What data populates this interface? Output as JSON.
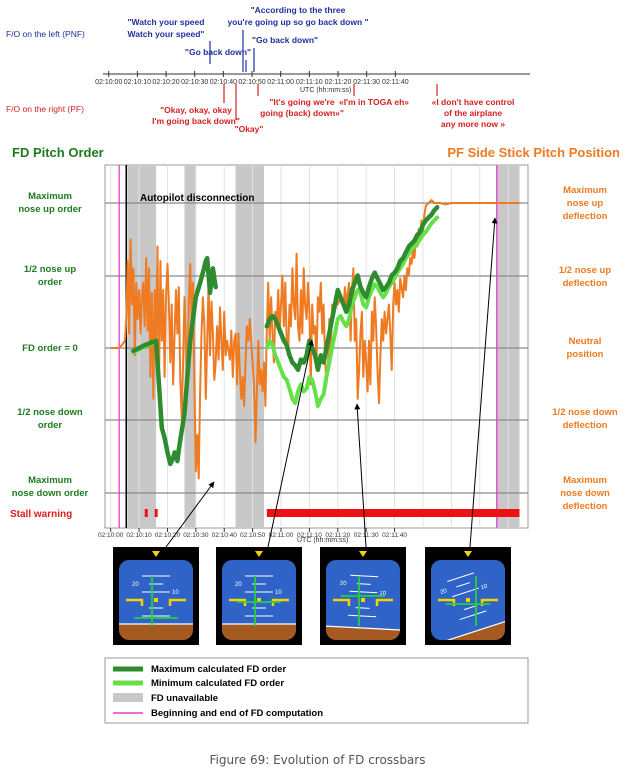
{
  "headings": {
    "pnf_axis": "F/O on the left (PNF)",
    "pf_axis": "F/O on the right (PF)",
    "fd_pitch_order": "FD Pitch Order",
    "side_stick": "PF Side Stick Pitch Position",
    "autopilot": "Autopilot disconnection",
    "stall_warning": "Stall warning",
    "utc_label": "UTC (hh:mm:ss)"
  },
  "time_ticks": [
    "02:10:00",
    "02:10:10",
    "02:10:20",
    "02:10:30",
    "02:10:40",
    "02:10:50",
    "02:11:00",
    "02:11:10",
    "02:11:20",
    "02:11:30",
    "02:11:40"
  ],
  "pnf_quotes": [
    {
      "l1": "\"Watch your speed",
      "l2": "Watch your speed\""
    },
    {
      "l1": "\"Go back down\"",
      "l2": ""
    },
    {
      "l1": "\"According to the three",
      "l2": "you're going up so go back down \""
    },
    {
      "l1": "\"Go back down\"",
      "l2": ""
    }
  ],
  "pf_quotes": [
    {
      "l1": "\"Okay, okay, okay",
      "l2": "I'm going back down\"",
      "l3": ""
    },
    {
      "l1": "\"Okay\"",
      "l2": "",
      "l3": ""
    },
    {
      "l1": "\"It's going we're",
      "l2": "going (back) down»\"",
      "l3": ""
    },
    {
      "l1": "«I'm in TOGA eh»",
      "l2": "",
      "l3": ""
    },
    {
      "l1": "«I don't have control",
      "l2": "of the airplane",
      "l3": "any more now »"
    }
  ],
  "left_labels": {
    "max_up": [
      "Maximum",
      "nose up order"
    ],
    "half_up": [
      "1/2 nose up",
      "order"
    ],
    "zero": [
      "FD order = 0"
    ],
    "half_down": [
      "1/2 nose down",
      "order"
    ],
    "max_down": [
      "Maximum",
      "nose down order"
    ]
  },
  "right_labels": {
    "max_up": [
      "Maximum",
      "nose up",
      "deflection"
    ],
    "half_up": [
      "1/2 nose up",
      "deflection"
    ],
    "zero": [
      "Neutral",
      "position"
    ],
    "half_down": [
      "1/2 nose down",
      "deflection"
    ],
    "max_down": [
      "Maximum",
      "nose down",
      "deflection"
    ]
  },
  "legend": [
    {
      "label": "Maximum calculated FD order",
      "color": "#2e8b2e"
    },
    {
      "label": "Minimum calculated FD order",
      "color": "#66e04a"
    },
    {
      "label": "FD unavailable",
      "color": "#c8c8c8"
    },
    {
      "label": "Beginning and end of FD computation",
      "color": "#e040d0"
    }
  ],
  "caption": "Figure 69: Evolution of FD crossbars",
  "pfd_labels": [
    "20",
    "10",
    "10",
    "10",
    "10"
  ],
  "chart_data": {
    "type": "line",
    "xlabel": "UTC (hh:mm:ss)",
    "x_unit": "seconds after 02:10:00",
    "ylim": [
      -1,
      1
    ],
    "y_meaning": "fraction of maximum (1 = maximum nose up, -1 = maximum nose down)",
    "fd_unavailable_intervals": [
      [
        6,
        16
      ],
      [
        26,
        30
      ],
      [
        44,
        54
      ],
      [
        136,
        144
      ]
    ],
    "fd_computation_markers": [
      3,
      136
    ],
    "autopilot_disconnection": 5.5,
    "stall_warning_intervals": [
      [
        12,
        13
      ],
      [
        15.5,
        16.5
      ],
      [
        55,
        144
      ]
    ],
    "colors": {
      "fd_max": "#2e8b2e",
      "fd_min": "#66e04a",
      "stick": "#ee7a22",
      "unavailable": "#c8c8c8",
      "marker": "#e040d0",
      "stall": "#ee1111"
    },
    "stick": [
      [
        0,
        0
      ],
      [
        1,
        0
      ],
      [
        2,
        0
      ],
      [
        3,
        0
      ],
      [
        4,
        0.02
      ],
      [
        5,
        0.05
      ],
      [
        5.5,
        0.2
      ],
      [
        6,
        0.6
      ],
      [
        6.5,
        0.1
      ],
      [
        7,
        0.75
      ],
      [
        7.5,
        0.3
      ],
      [
        8,
        0.55
      ],
      [
        8.5,
        -0.05
      ],
      [
        9,
        0.45
      ],
      [
        9.5,
        0.2
      ],
      [
        10,
        0.4
      ],
      [
        10.5,
        0.1
      ],
      [
        11,
        0.35
      ],
      [
        11.5,
        0.45
      ],
      [
        12,
        0.15
      ],
      [
        12.5,
        0.62
      ],
      [
        13,
        0.12
      ],
      [
        13.5,
        0.55
      ],
      [
        14,
        -0.2
      ],
      [
        14.5,
        0.38
      ],
      [
        15,
        -0.35
      ],
      [
        15.5,
        0.4
      ],
      [
        16,
        0.05
      ],
      [
        16.5,
        0.7
      ],
      [
        17,
        -0.3
      ],
      [
        17.5,
        0.6
      ],
      [
        18,
        0.05
      ],
      [
        18.5,
        0.4
      ],
      [
        19,
        -0.2
      ],
      [
        19.5,
        0.35
      ],
      [
        20,
        0.58
      ],
      [
        20.5,
        0.3
      ],
      [
        21,
        -0.1
      ],
      [
        21.5,
        0.3
      ],
      [
        22,
        -0.25
      ],
      [
        22.5,
        0.1
      ],
      [
        23,
        0.4
      ],
      [
        23.5,
        0.1
      ],
      [
        24,
        0.42
      ],
      [
        24.5,
        -0.2
      ],
      [
        25,
        -0.48
      ],
      [
        25.5,
        -0.1
      ],
      [
        26,
        0.35
      ],
      [
        26.5,
        0.05
      ],
      [
        27,
        -0.3
      ],
      [
        27.5,
        0.3
      ],
      [
        28,
        0.58
      ],
      [
        28.5,
        0.2
      ],
      [
        29,
        0.45
      ],
      [
        29.5,
        -0.25
      ],
      [
        30,
        -0.85
      ],
      [
        30.5,
        -0.6
      ],
      [
        31,
        -0.9
      ],
      [
        31.5,
        -0.3
      ],
      [
        32,
        0.1
      ],
      [
        32.5,
        0.35
      ],
      [
        33,
        0.15
      ],
      [
        33.5,
        -0.35
      ],
      [
        34,
        0.05
      ],
      [
        34.5,
        0.45
      ],
      [
        35,
        -0.05
      ],
      [
        35.5,
        0.32
      ],
      [
        36,
        0.1
      ],
      [
        36.5,
        -0.22
      ],
      [
        37,
        -0.1
      ],
      [
        37.5,
        0.15
      ],
      [
        38,
        -0.08
      ],
      [
        38.5,
        0.28
      ],
      [
        39,
        0.05
      ],
      [
        39.5,
        -0.15
      ],
      [
        40,
        0.25
      ],
      [
        40.5,
        -0.05
      ],
      [
        41,
        0.05
      ],
      [
        42,
        -0.08
      ],
      [
        42.5,
        0.12
      ],
      [
        43,
        -0.2
      ],
      [
        43.5,
        0.05
      ],
      [
        44,
        0.1
      ],
      [
        44.5,
        -0.25
      ],
      [
        45,
        0.1
      ],
      [
        45.5,
        -0.15
      ],
      [
        46,
        -0.35
      ],
      [
        46.5,
        -0.2
      ],
      [
        47,
        -0.4
      ],
      [
        47.5,
        -0.1
      ],
      [
        48,
        0.15
      ],
      [
        48.5,
        0.05
      ],
      [
        49,
        0.2
      ],
      [
        49.5,
        0.05
      ],
      [
        50,
        -0.1
      ],
      [
        50.5,
        -0.25
      ],
      [
        51,
        -0.65
      ],
      [
        51.5,
        -0.3
      ],
      [
        52,
        0.05
      ],
      [
        52.5,
        -0.25
      ],
      [
        53,
        -0.15
      ],
      [
        53.5,
        -0.3
      ],
      [
        54,
        -0.1
      ],
      [
        54.5,
        -0.4
      ],
      [
        55,
        0.12
      ],
      [
        55.5,
        0.45
      ],
      [
        56,
        0.05
      ],
      [
        56.5,
        0.35
      ],
      [
        57,
        0.1
      ],
      [
        57.5,
        -0.1
      ],
      [
        58,
        0.25
      ],
      [
        58.5,
        0.15
      ],
      [
        59,
        0.4
      ],
      [
        59.5,
        0.1
      ],
      [
        60,
        0.3
      ],
      [
        60.5,
        0.5
      ],
      [
        61,
        0.15
      ],
      [
        61.5,
        0.45
      ],
      [
        62,
        0.05
      ],
      [
        62.5,
        -0.05
      ],
      [
        63,
        0.3
      ],
      [
        63.5,
        0.15
      ],
      [
        64,
        0.55
      ],
      [
        64.5,
        0.3
      ],
      [
        65,
        0.2
      ],
      [
        65.5,
        0.65
      ],
      [
        66,
        0.15
      ],
      [
        66.5,
        0.05
      ],
      [
        67,
        0.4
      ],
      [
        67.5,
        0.1
      ],
      [
        68,
        0.55
      ],
      [
        68.5,
        0.3
      ],
      [
        69,
        0.2
      ],
      [
        69.5,
        0.45
      ],
      [
        70,
        0.25
      ],
      [
        70.5,
        -0.25
      ],
      [
        71,
        0.3
      ],
      [
        71.5,
        0.1
      ],
      [
        72,
        0.15
      ],
      [
        72.5,
        -0.1
      ],
      [
        73,
        0.35
      ],
      [
        73.5,
        0.25
      ],
      [
        74,
        0.45
      ],
      [
        74.5,
        0.1
      ],
      [
        75,
        0.3
      ],
      [
        75.5,
        -0.05
      ],
      [
        76,
        -0.25
      ],
      [
        76.5,
        -0.15
      ],
      [
        77,
        0.2
      ],
      [
        77.5,
        -0.05
      ],
      [
        78,
        0.3
      ],
      [
        78.5,
        0.25
      ],
      [
        79,
        0.35
      ],
      [
        80,
        0.3
      ],
      [
        81,
        0.35
      ],
      [
        82,
        0.28
      ],
      [
        82.5,
        0.42
      ],
      [
        83,
        0.3
      ],
      [
        84,
        0.45
      ],
      [
        84.5,
        0.05
      ],
      [
        85,
        0.4
      ],
      [
        85.5,
        0.55
      ],
      [
        86,
        0.05
      ],
      [
        86.5,
        0.2
      ],
      [
        87,
        -0.35
      ],
      [
        87.5,
        -0.15
      ],
      [
        88,
        0.1
      ],
      [
        88.5,
        0.25
      ],
      [
        89,
        -0.2
      ],
      [
        89.5,
        0.05
      ],
      [
        90,
        -0.1
      ],
      [
        90.5,
        -0.3
      ],
      [
        91,
        0.05
      ],
      [
        91.5,
        -0.25
      ],
      [
        92,
        0.25
      ],
      [
        92.5,
        0.05
      ],
      [
        93,
        0.35
      ],
      [
        93.5,
        0.15
      ],
      [
        94,
        -0.15
      ],
      [
        94.5,
        -0.38
      ],
      [
        95,
        -0.05
      ],
      [
        95.5,
        0.2
      ],
      [
        96,
        0.05
      ],
      [
        96.5,
        0.25
      ],
      [
        97,
        0.1
      ],
      [
        98,
        0.3
      ],
      [
        98.5,
        0.1
      ],
      [
        99,
        -0.15
      ],
      [
        99.5,
        0.3
      ],
      [
        100,
        0.45
      ],
      [
        100.5,
        0.3
      ],
      [
        101,
        0.4
      ],
      [
        101.5,
        0.25
      ],
      [
        102,
        0.48
      ],
      [
        103,
        0.35
      ],
      [
        103.5,
        0.5
      ],
      [
        104,
        0.4
      ],
      [
        104.5,
        0.55
      ],
      [
        105,
        0.5
      ],
      [
        105.5,
        0.62
      ],
      [
        106,
        0.58
      ],
      [
        106.5,
        0.68
      ],
      [
        107,
        0.62
      ],
      [
        107.5,
        0.74
      ],
      [
        108,
        0.7
      ],
      [
        108.5,
        0.82
      ],
      [
        109,
        0.76
      ],
      [
        109.5,
        0.88
      ],
      [
        110,
        0.8
      ],
      [
        110.5,
        0.92
      ],
      [
        111,
        0.98
      ],
      [
        112,
        1.0
      ],
      [
        113,
        1.02
      ],
      [
        114,
        1.0
      ],
      [
        116,
        1.0
      ],
      [
        118,
        0.99
      ],
      [
        120,
        1.0
      ],
      [
        122,
        1.0
      ],
      [
        124,
        1.0
      ],
      [
        126,
        1.0
      ],
      [
        128,
        1.0
      ],
      [
        130,
        1.0
      ],
      [
        132,
        1.0
      ],
      [
        134,
        1.0
      ],
      [
        136,
        1.0
      ],
      [
        138,
        1.0
      ],
      [
        140,
        1.0
      ],
      [
        142,
        1.0
      ],
      [
        144,
        1.0
      ]
    ],
    "fd_max": [
      [
        8,
        -0.02
      ],
      [
        10,
        0.0
      ],
      [
        12,
        0.02
      ],
      [
        16,
        0.05
      ],
      [
        18,
        -0.55
      ],
      [
        19,
        -0.62
      ],
      [
        20,
        -0.72
      ],
      [
        21,
        -0.8
      ],
      [
        22,
        -0.76
      ],
      [
        22.5,
        -0.72
      ],
      [
        23.5,
        -0.78
      ],
      [
        24,
        -0.7
      ],
      [
        26,
        -0.45
      ],
      [
        28,
        0.05
      ],
      [
        30,
        0.35
      ],
      [
        31.5,
        0.45
      ],
      [
        32.5,
        0.52
      ],
      [
        33.5,
        0.6
      ],
      [
        34,
        0.62
      ],
      [
        35,
        0.38
      ],
      [
        36,
        0.55
      ],
      [
        36.5,
        0.48
      ],
      [
        37,
        0.42
      ],
      [
        55,
        0.15
      ],
      [
        56,
        0.2
      ],
      [
        57,
        0.22
      ],
      [
        58,
        0.2
      ],
      [
        59,
        0.15
      ],
      [
        60,
        0.1
      ],
      [
        61,
        0.05
      ],
      [
        62,
        0.02
      ],
      [
        63,
        -0.05
      ],
      [
        64,
        -0.1
      ],
      [
        65,
        -0.12
      ],
      [
        66,
        -0.15
      ],
      [
        67,
        -0.08
      ],
      [
        68,
        -0.1
      ],
      [
        69,
        -0.05
      ],
      [
        70,
        0.05
      ],
      [
        71,
        0.0
      ],
      [
        72,
        -0.05
      ],
      [
        73,
        -0.15
      ],
      [
        74,
        -0.05
      ],
      [
        75,
        -0.1
      ],
      [
        76,
        0.0
      ],
      [
        77,
        0.1
      ],
      [
        78,
        0.2
      ],
      [
        79,
        0.3
      ],
      [
        80,
        0.4
      ],
      [
        81,
        0.35
      ],
      [
        82,
        0.3
      ],
      [
        83,
        0.25
      ],
      [
        84,
        0.3
      ],
      [
        85,
        0.4
      ],
      [
        86,
        0.45
      ],
      [
        87,
        0.5
      ],
      [
        88,
        0.42
      ],
      [
        89,
        0.38
      ],
      [
        90,
        0.35
      ],
      [
        91,
        0.42
      ],
      [
        92,
        0.48
      ],
      [
        93,
        0.52
      ],
      [
        94,
        0.48
      ],
      [
        95,
        0.44
      ],
      [
        96,
        0.4
      ],
      [
        97,
        0.42
      ],
      [
        98,
        0.45
      ],
      [
        99,
        0.5
      ],
      [
        100,
        0.52
      ],
      [
        101,
        0.55
      ],
      [
        102,
        0.6
      ],
      [
        103,
        0.62
      ],
      [
        104,
        0.66
      ],
      [
        105,
        0.7
      ],
      [
        106,
        0.72
      ],
      [
        107,
        0.74
      ],
      [
        108,
        0.78
      ],
      [
        109,
        0.8
      ],
      [
        110,
        0.85
      ],
      [
        111,
        0.88
      ],
      [
        112,
        0.9
      ],
      [
        113,
        0.92
      ],
      [
        114,
        0.95
      ],
      [
        115,
        0.97
      ]
    ],
    "fd_min": [
      [
        8,
        -0.03
      ],
      [
        10,
        -0.01
      ],
      [
        12,
        0.01
      ],
      [
        16,
        0.04
      ],
      [
        55,
        0.0
      ],
      [
        56,
        0.05
      ],
      [
        57,
        0.02
      ],
      [
        58,
        -0.05
      ],
      [
        59,
        -0.1
      ],
      [
        60,
        -0.15
      ],
      [
        61,
        -0.2
      ],
      [
        62,
        -0.22
      ],
      [
        63,
        -0.28
      ],
      [
        64,
        -0.35
      ],
      [
        65,
        -0.38
      ],
      [
        66,
        -0.3
      ],
      [
        67,
        -0.25
      ],
      [
        68,
        -0.3
      ],
      [
        69,
        -0.28
      ],
      [
        70,
        -0.2
      ],
      [
        71,
        -0.22
      ],
      [
        72,
        -0.3
      ],
      [
        73,
        -0.4
      ],
      [
        74,
        -0.35
      ],
      [
        75,
        -0.32
      ],
      [
        76,
        -0.2
      ],
      [
        77,
        -0.1
      ],
      [
        78,
        0.0
      ],
      [
        79,
        0.1
      ],
      [
        80,
        0.2
      ],
      [
        81,
        0.22
      ],
      [
        82,
        0.18
      ],
      [
        83,
        0.15
      ],
      [
        84,
        0.2
      ],
      [
        85,
        0.3
      ],
      [
        86,
        0.35
      ],
      [
        87,
        0.4
      ],
      [
        88,
        0.38
      ],
      [
        89,
        0.3
      ],
      [
        90,
        0.28
      ],
      [
        91,
        0.35
      ],
      [
        92,
        0.4
      ],
      [
        93,
        0.44
      ],
      [
        94,
        0.42
      ],
      [
        95,
        0.38
      ],
      [
        96,
        0.35
      ],
      [
        97,
        0.38
      ],
      [
        98,
        0.42
      ],
      [
        99,
        0.45
      ],
      [
        100,
        0.48
      ],
      [
        101,
        0.52
      ],
      [
        102,
        0.55
      ],
      [
        103,
        0.58
      ],
      [
        104,
        0.62
      ],
      [
        105,
        0.65
      ],
      [
        106,
        0.68
      ],
      [
        107,
        0.7
      ],
      [
        108,
        0.72
      ],
      [
        109,
        0.75
      ],
      [
        110,
        0.78
      ],
      [
        111,
        0.8
      ],
      [
        112,
        0.83
      ],
      [
        113,
        0.86
      ],
      [
        114,
        0.88
      ],
      [
        115,
        0.9
      ]
    ]
  }
}
